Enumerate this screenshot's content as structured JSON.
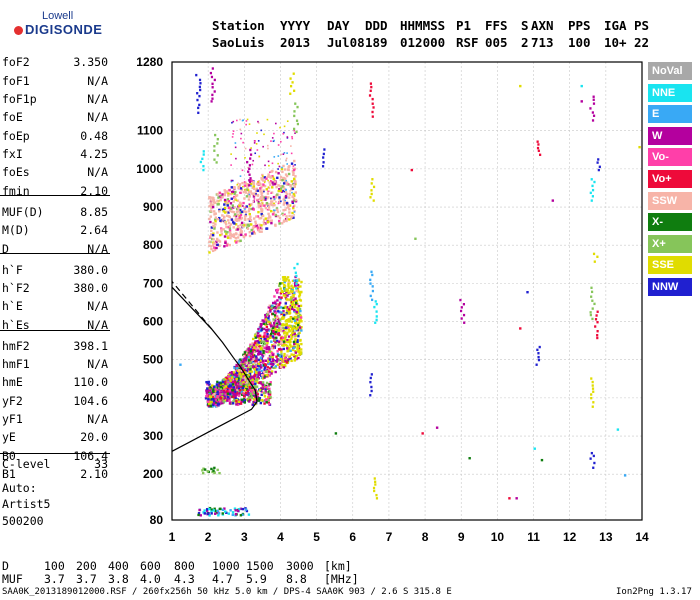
{
  "logo": {
    "line1": "Lowell",
    "line2": "DIGISONDE"
  },
  "header": {
    "row1": [
      "Station",
      "YYYY",
      "DAY",
      "DDD",
      "HHMMSS",
      "P1",
      "FFS",
      "S",
      "AXN",
      "PPS",
      "IGA",
      "PS"
    ],
    "row2": [
      "SaoLuis",
      "2013",
      "Jul08",
      "189",
      "012000",
      "RSF",
      "005",
      "2",
      "713",
      "100",
      "10+",
      "22"
    ]
  },
  "params": [
    {
      "name": "foF2",
      "value": "3.350"
    },
    {
      "name": "foF1",
      "value": "N/A"
    },
    {
      "name": "foF1p",
      "value": "N/A"
    },
    {
      "name": "foE",
      "value": "N/A"
    },
    {
      "name": "foEp",
      "value": "0.48"
    },
    {
      "name": "fxI",
      "value": "4.25"
    },
    {
      "name": "foEs",
      "value": "N/A"
    },
    {
      "name": "fmin",
      "value": "2.10"
    },
    {
      "name": "MUF(D)",
      "value": "8.85"
    },
    {
      "name": "M(D)",
      "value": "2.64"
    },
    {
      "name": "D",
      "value": "N/A"
    },
    {
      "name": "h`F",
      "value": "380.0"
    },
    {
      "name": "h`F2",
      "value": "380.0"
    },
    {
      "name": "h`E",
      "value": "N/A"
    },
    {
      "name": "h`Es",
      "value": "N/A"
    },
    {
      "name": "hmF2",
      "value": "398.1"
    },
    {
      "name": "hmF1",
      "value": "N/A"
    },
    {
      "name": "hmE",
      "value": "110.0"
    },
    {
      "name": "yF2",
      "value": "104.6"
    },
    {
      "name": "yF1",
      "value": "N/A"
    },
    {
      "name": "yE",
      "value": "20.0"
    },
    {
      "name": "B0",
      "value": "106.4"
    },
    {
      "name": "B1",
      "value": "2.10"
    },
    {
      "name": "C-level",
      "value": "33"
    }
  ],
  "auto": {
    "line1": "Auto:",
    "line2": "Artist5",
    "line3": "500200"
  },
  "dtable": {
    "d_label": "D",
    "d_values": [
      "100",
      "200",
      "400",
      "600",
      "800",
      "1000",
      "1500",
      "3000"
    ],
    "d_unit": "[km]",
    "muf_label": "MUF",
    "muf_values": [
      "3.7",
      "3.7",
      "3.8",
      "4.0",
      "4.3",
      "4.7",
      "5.9",
      "8.8"
    ],
    "muf_unit": "[MHz]"
  },
  "footer": {
    "left": "SAA0K_2013189012000.RSF / 260fx256h 50 kHz 5.0 km / DPS-4 SAA0K 903 / 2.6 S 315.8 E",
    "right": "Ion2Png 1.3.17"
  },
  "legend": [
    {
      "label": "NoVal",
      "color": "#a8a8a8"
    },
    {
      "label": "NNE",
      "color": "#19e4f0"
    },
    {
      "label": "E",
      "color": "#39a9f5"
    },
    {
      "label": "W",
      "color": "#b4009e"
    },
    {
      "label": "Vo-",
      "color": "#ff3fa9"
    },
    {
      "label": "Vo+",
      "color": "#ee0a3a"
    },
    {
      "label": "SSW",
      "color": "#f7b4a8"
    },
    {
      "label": "X-",
      "color": "#0f7d0f"
    },
    {
      "label": "X+",
      "color": "#86c55a"
    },
    {
      "label": "SSE",
      "color": "#e0dc00"
    },
    {
      "label": "NNW",
      "color": "#2020d0"
    }
  ],
  "chart_data": {
    "type": "scatter",
    "x_ticks": [
      "1",
      "2",
      "3",
      "4",
      "5",
      "6",
      "7",
      "8",
      "9",
      "10",
      "11",
      "12",
      "13",
      "14"
    ],
    "y_ticks": [
      "80",
      "200",
      "300",
      "400",
      "500",
      "600",
      "700",
      "800",
      "900",
      "1000",
      "1100",
      "1280"
    ],
    "xlim": [
      1,
      14
    ],
    "ylim": [
      80,
      1280
    ],
    "grid": true,
    "legend_position": "right",
    "profile_curve": [
      [
        1,
        260
      ],
      [
        1.5,
        285
      ],
      [
        2.0,
        310
      ],
      [
        2.5,
        335
      ],
      [
        2.9,
        355
      ],
      [
        3.2,
        370
      ],
      [
        3.35,
        390
      ],
      [
        3.3,
        420
      ],
      [
        3.1,
        450
      ],
      [
        2.9,
        480
      ],
      [
        2.7,
        505
      ],
      [
        2.4,
        545
      ],
      [
        2.1,
        580
      ],
      [
        1.8,
        610
      ],
      [
        1.5,
        640
      ],
      [
        1.2,
        670
      ],
      [
        1,
        690
      ]
    ],
    "extrapolated_segment": [
      [
        2.1,
        580
      ],
      [
        1.0,
        705
      ]
    ],
    "trace_regions": [
      {
        "name": "o-trace",
        "x": [
          1.9,
          4.6
        ],
        "y": [
          380,
          720
        ]
      },
      {
        "name": "spread-F",
        "x": [
          2.7,
          4.5
        ],
        "y": [
          520,
          900
        ]
      },
      {
        "name": "multi-hop",
        "x": [
          2.0,
          4.0
        ],
        "y": [
          780,
          1000
        ]
      }
    ]
  }
}
